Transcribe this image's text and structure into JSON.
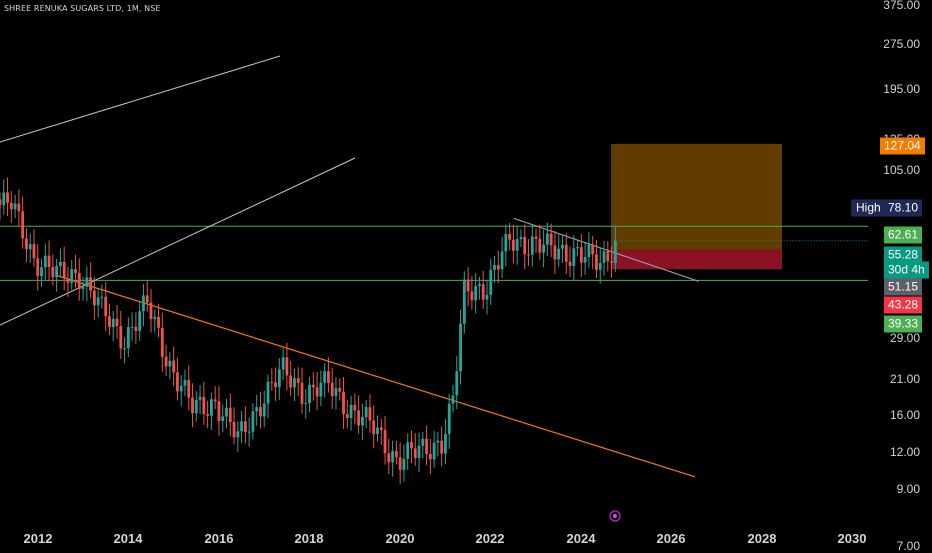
{
  "header": {
    "symbol_title": "SHREE RENUKA SUGARS LTD, 1M, NSE"
  },
  "price_scale": {
    "ticks": [
      "375.00",
      "275.00",
      "195.00",
      "135.00",
      "105.00",
      "29.00",
      "21.00",
      "16.00",
      "12.00",
      "9.00",
      "7.00"
    ],
    "badges": {
      "target": {
        "value": "127.04",
        "color": "#f57c00"
      },
      "high": {
        "label": "High",
        "value": "78.10",
        "color": "#1e2a55"
      },
      "level_upper": {
        "value": "62.61",
        "color": "#4caf50"
      },
      "last_price": {
        "value": "55.28",
        "color": "#089981"
      },
      "countdown": {
        "value": "30d 4h",
        "color": "#089981"
      },
      "level_mid": {
        "value": "51.15",
        "color": "#5d606b"
      },
      "stop": {
        "value": "43.28",
        "color": "#f23645"
      },
      "level_lower": {
        "value": "39.33",
        "color": "#4caf50"
      }
    }
  },
  "time_axis": {
    "years": [
      "2012",
      "2014",
      "2016",
      "2018",
      "2020",
      "2022",
      "2024",
      "2026",
      "2028",
      "2030"
    ]
  },
  "chart_data": {
    "type": "candlestick",
    "title": "SHREE RENUKA SUGARS LTD, 1M, NSE",
    "interval": "1M",
    "exchange": "NSE",
    "y_scale": "log",
    "x_range": [
      "2011-01",
      "2030-12"
    ],
    "ylim": [
      7,
      375
    ],
    "candles_approx": [
      {
        "date": "2011-06",
        "close": 75
      },
      {
        "date": "2011-12",
        "close": 48
      },
      {
        "date": "2012-06",
        "close": 41
      },
      {
        "date": "2012-12",
        "close": 42
      },
      {
        "date": "2013-06",
        "close": 30
      },
      {
        "date": "2013-12",
        "close": 24
      },
      {
        "date": "2014-06",
        "close": 32
      },
      {
        "date": "2014-12",
        "close": 19
      },
      {
        "date": "2015-06",
        "close": 13
      },
      {
        "date": "2015-12",
        "close": 14
      },
      {
        "date": "2016-06",
        "close": 10
      },
      {
        "date": "2016-12",
        "close": 14
      },
      {
        "date": "2017-06",
        "close": 18
      },
      {
        "date": "2017-12",
        "close": 15
      },
      {
        "date": "2018-06",
        "close": 16
      },
      {
        "date": "2018-12",
        "close": 13
      },
      {
        "date": "2019-06",
        "close": 11
      },
      {
        "date": "2019-12",
        "close": 8.5
      },
      {
        "date": "2020-06",
        "close": 9
      },
      {
        "date": "2020-12",
        "close": 10
      },
      {
        "date": "2021-03",
        "close": 14
      },
      {
        "date": "2021-06",
        "close": 36
      },
      {
        "date": "2021-12",
        "close": 38
      },
      {
        "date": "2022-06",
        "close": 55
      },
      {
        "date": "2022-12",
        "close": 55
      },
      {
        "date": "2023-06",
        "close": 50
      },
      {
        "date": "2023-12",
        "close": 51
      },
      {
        "date": "2024-06",
        "close": 44
      },
      {
        "date": "2024-10",
        "close": 55.28
      }
    ],
    "horizontal_levels": [
      {
        "value": 62.61,
        "color": "#4caf50"
      },
      {
        "value": 39.33,
        "color": "#4caf50"
      }
    ],
    "position_tool": {
      "entry": 51.15,
      "target": 127.04,
      "stop": 43.28,
      "profit_color": "#b36b00",
      "loss_color": "#a3152a"
    },
    "trendlines": [
      {
        "from": {
          "date": "2012-06",
          "price": 41
        },
        "to": {
          "date": "2021-03",
          "price": 14
        },
        "color": "#f57c00"
      },
      {
        "from": {
          "date": "2022-07",
          "price": 67
        },
        "to": {
          "date": "2026-08",
          "price": 39
        },
        "color": "#9598a1"
      }
    ],
    "last_price": 55.28,
    "high": 78.1
  }
}
